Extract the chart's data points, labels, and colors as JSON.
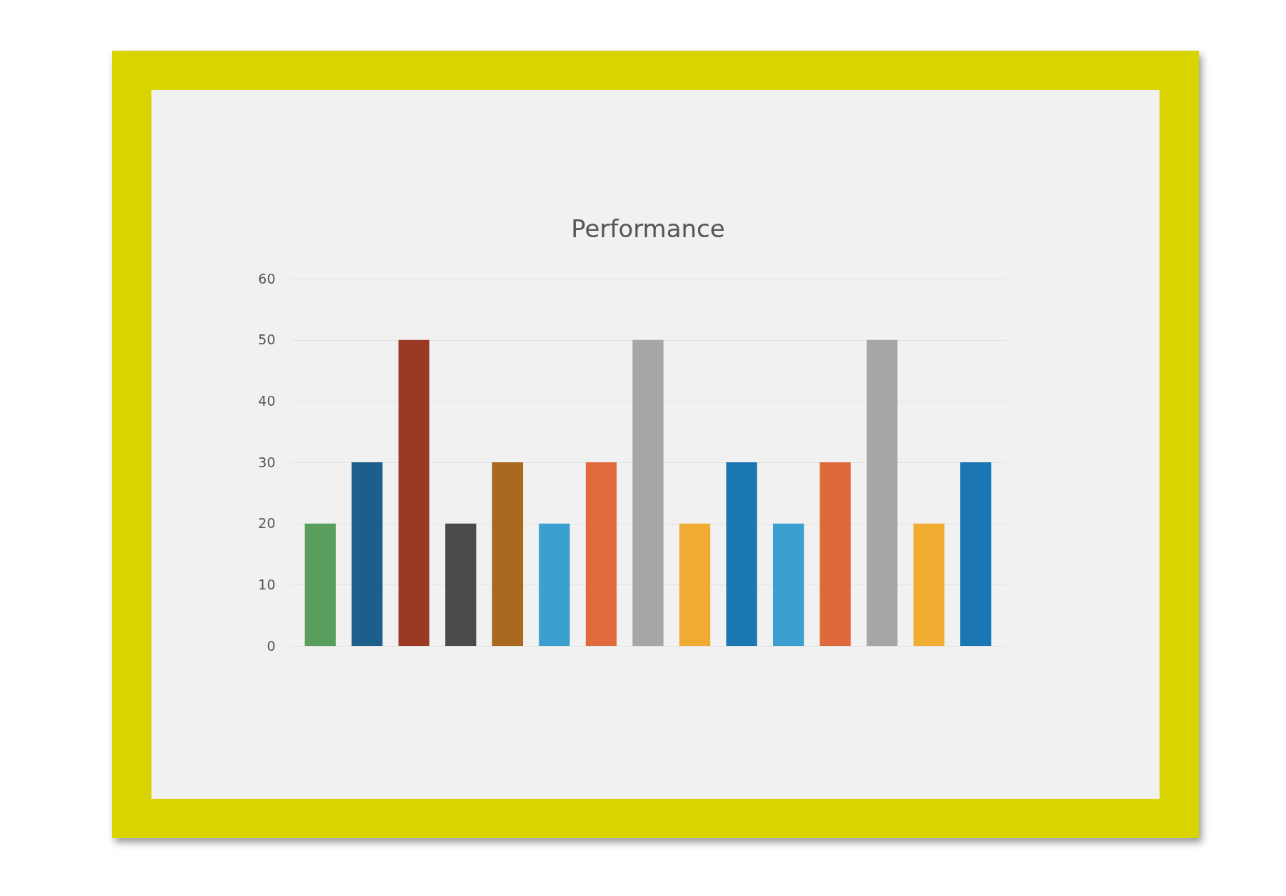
{
  "chart_data": {
    "type": "bar",
    "title": "Performance",
    "categories": [
      null,
      null,
      null,
      null,
      null,
      null,
      null,
      null,
      null,
      null,
      null,
      null,
      null,
      null,
      null
    ],
    "values": [
      20,
      30,
      50,
      20,
      30,
      20,
      30,
      50,
      20,
      30,
      20,
      30,
      50,
      20,
      30
    ],
    "colors": [
      "#5a9e5e",
      "#1d5f8c",
      "#9a3a24",
      "#4a4a4a",
      "#a8691f",
      "#3b9fd0",
      "#e06a3c",
      "#a6a6a6",
      "#f0ab32",
      "#1a77b3",
      "#3ba0d0",
      "#e0693c",
      "#a6a6a6",
      "#f0ad32",
      "#1a77b3"
    ],
    "ylim": [
      0,
      60
    ],
    "yticks": [
      0,
      10,
      20,
      30,
      40,
      50,
      60
    ],
    "grid": "y",
    "tick_labels": "y"
  }
}
